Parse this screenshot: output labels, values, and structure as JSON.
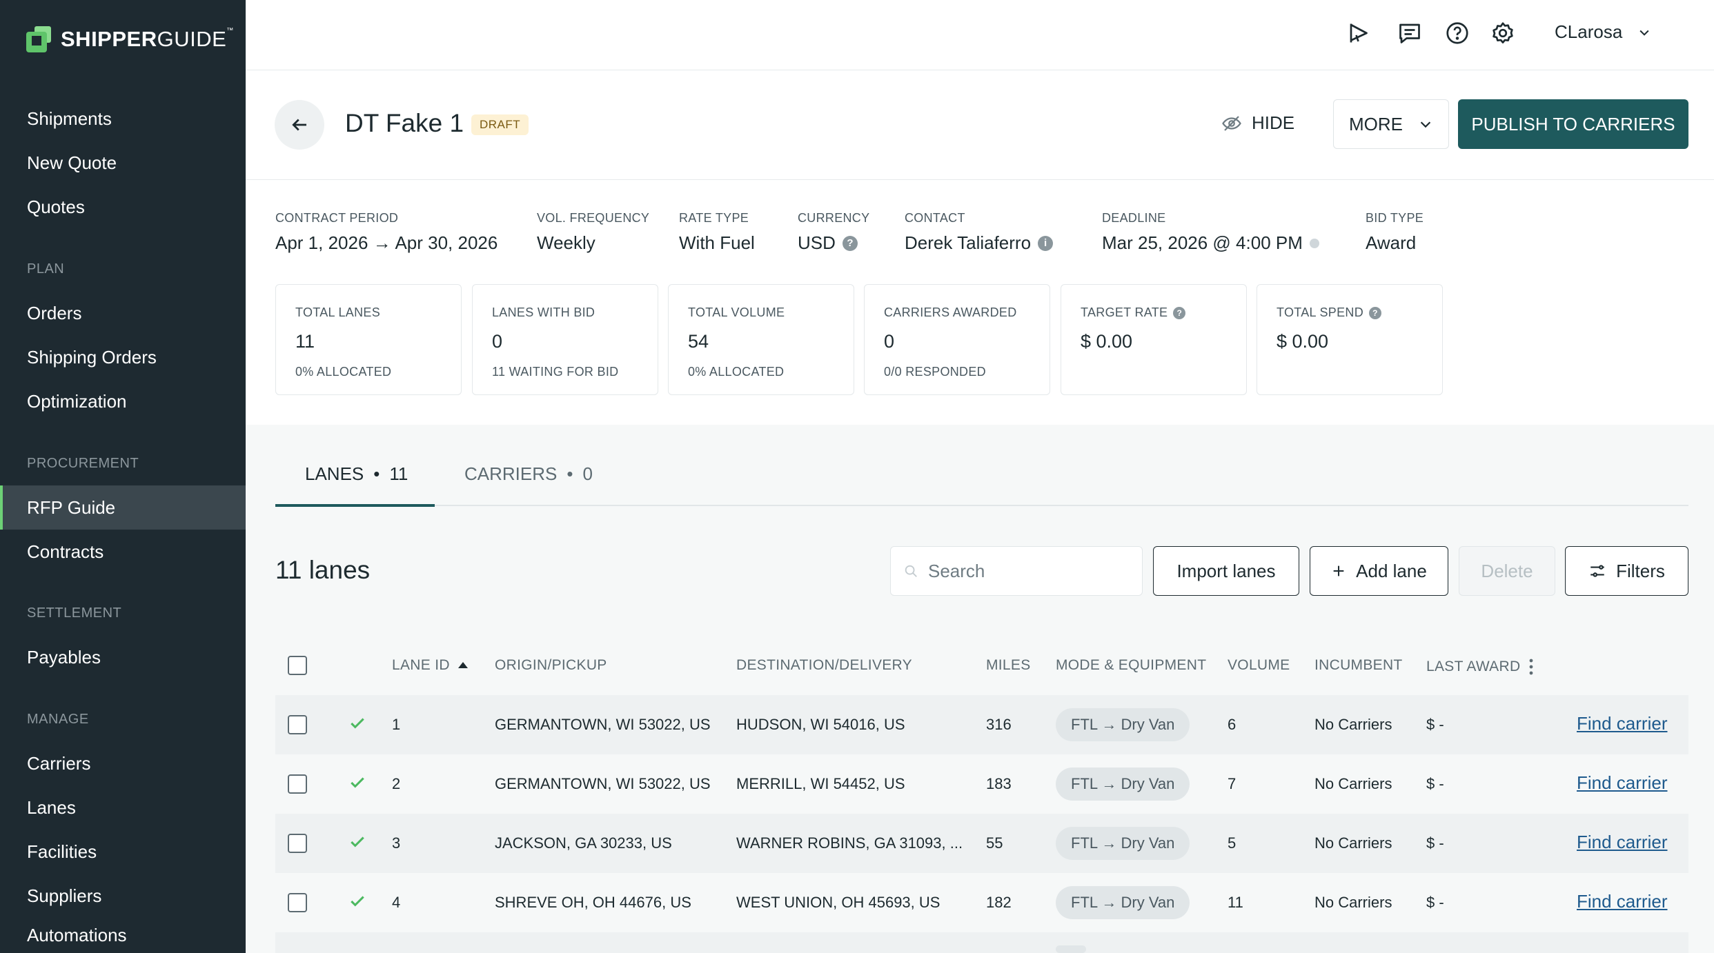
{
  "sidebar": {
    "logo": {
      "bold": "SHIPPER",
      "light": "GUIDE",
      "tm": "™"
    },
    "items": [
      {
        "label": "Shipments"
      },
      {
        "label": "New Quote"
      },
      {
        "label": "Quotes"
      },
      {
        "label": "Orders"
      },
      {
        "label": "Shipping Orders"
      },
      {
        "label": "Optimization"
      },
      {
        "label": "RFP Guide"
      },
      {
        "label": "Contracts"
      },
      {
        "label": "Payables"
      },
      {
        "label": "Carriers"
      },
      {
        "label": "Lanes"
      },
      {
        "label": "Facilities"
      },
      {
        "label": "Suppliers"
      },
      {
        "label": "Automations"
      }
    ],
    "sections": {
      "plan": "PLAN",
      "procurement": "PROCUREMENT",
      "settlement": "SETTLEMENT",
      "manage": "MANAGE"
    }
  },
  "topbar": {
    "user": "CLarosa"
  },
  "header": {
    "title": "DT Fake 1",
    "badge": "DRAFT",
    "hide_label": "HIDE",
    "more_label": "MORE",
    "publish_label": "PUBLISH TO CARRIERS"
  },
  "meta": {
    "contract_period": {
      "label": "CONTRACT PERIOD",
      "value": "Apr 1, 2026 → Apr 30, 2026"
    },
    "vol_frequency": {
      "label": "VOL. FREQUENCY",
      "value": "Weekly"
    },
    "rate_type": {
      "label": "RATE TYPE",
      "value": "With Fuel"
    },
    "currency": {
      "label": "CURRENCY",
      "value": "USD"
    },
    "contact": {
      "label": "CONTACT",
      "value": "Derek Taliaferro"
    },
    "deadline": {
      "label": "DEADLINE",
      "value": "Mar 25, 2026 @ 4:00 PM"
    },
    "bid_type": {
      "label": "BID TYPE",
      "value": "Award"
    }
  },
  "stats": [
    {
      "label": "TOTAL LANES",
      "value": "11",
      "sub": "0% ALLOCATED"
    },
    {
      "label": "LANES WITH BID",
      "value": "0",
      "sub": "11 WAITING FOR BID"
    },
    {
      "label": "TOTAL VOLUME",
      "value": "54",
      "sub": "0% ALLOCATED"
    },
    {
      "label": "CARRIERS AWARDED",
      "value": "0",
      "sub": "0/0 RESPONDED"
    },
    {
      "label": "TARGET RATE",
      "value": "$ 0.00",
      "sub": ""
    },
    {
      "label": "TOTAL SPEND",
      "value": "$ 0.00",
      "sub": ""
    }
  ],
  "tabs": [
    {
      "label": "LANES",
      "count": "11"
    },
    {
      "label": "CARRIERS",
      "count": "0"
    }
  ],
  "tab_separator": "•",
  "lanes": {
    "title": "11 lanes",
    "search_placeholder": "Search",
    "import_label": "Import lanes",
    "add_label": "Add lane",
    "delete_label": "Delete",
    "filters_label": "Filters"
  },
  "table": {
    "columns": [
      "LANE ID",
      "ORIGIN/PICKUP",
      "DESTINATION/DELIVERY",
      "MILES",
      "MODE & EQUIPMENT",
      "VOLUME",
      "INCUMBENT",
      "LAST AWARD"
    ],
    "rows": [
      {
        "id": "1",
        "origin": "GERMANTOWN, WI 53022, US",
        "destination": "HUDSON, WI 54016, US",
        "miles": "316",
        "mode": "FTL → Dry Van",
        "volume": "6",
        "incumbent": "No Carriers",
        "last_award": "$ -",
        "action": "Find carrier"
      },
      {
        "id": "2",
        "origin": "GERMANTOWN, WI 53022, US",
        "destination": "MERRILL, WI 54452, US",
        "miles": "183",
        "mode": "FTL → Dry Van",
        "volume": "7",
        "incumbent": "No Carriers",
        "last_award": "$ -",
        "action": "Find carrier"
      },
      {
        "id": "3",
        "origin": "JACKSON, GA 30233, US",
        "destination": "WARNER ROBINS, GA 31093, ...",
        "miles": "55",
        "mode": "FTL → Dry Van",
        "volume": "5",
        "incumbent": "No Carriers",
        "last_award": "$ -",
        "action": "Find carrier"
      },
      {
        "id": "4",
        "origin": "SHREVE OH, OH 44676, US",
        "destination": "WEST UNION, OH 45693, US",
        "miles": "182",
        "mode": "FTL → Dry Van",
        "volume": "11",
        "incumbent": "No Carriers",
        "last_award": "$ -",
        "action": "Find carrier"
      }
    ]
  },
  "colors": {
    "accent": "#1e5a5d",
    "sidebar": "#1e2a31",
    "active_marker": "#6dd176",
    "check": "#4cb960",
    "link": "#1e5a8d"
  },
  "icons": {
    "back": "arrow-left-icon",
    "hide": "eye-off-icon",
    "search": "search-icon",
    "filters": "sliders-icon"
  }
}
